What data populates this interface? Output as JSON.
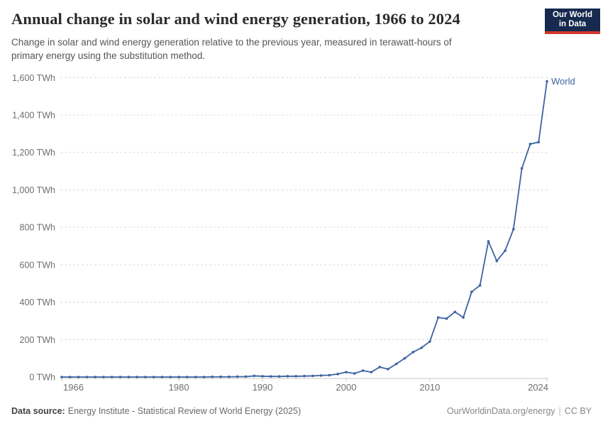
{
  "header": {
    "title": "Annual change in solar and wind energy generation, 1966 to 2024",
    "subtitle": "Change in solar and wind energy generation relative to the previous year, measured in terawatt-hours of primary energy using the substitution method."
  },
  "logo": {
    "line1": "Our World",
    "line2": "in Data"
  },
  "chart_data": {
    "type": "line",
    "title": "Annual change in solar and wind energy generation, 1966 to 2024",
    "unit": "TWh",
    "ylabel": "",
    "xlabel": "",
    "ylim": [
      0,
      1600
    ],
    "yticks": [
      0,
      200,
      400,
      600,
      800,
      1000,
      1200,
      1400,
      1600
    ],
    "ytick_suffix": " TWh",
    "xticks": [
      1966,
      1980,
      1990,
      2000,
      2010,
      2024
    ],
    "grid": true,
    "legend_position": "end-of-line-label",
    "line_color": "#3d63a2",
    "x": [
      1966,
      1967,
      1968,
      1969,
      1970,
      1971,
      1972,
      1973,
      1974,
      1975,
      1976,
      1977,
      1978,
      1979,
      1980,
      1981,
      1982,
      1983,
      1984,
      1985,
      1986,
      1987,
      1988,
      1989,
      1990,
      1991,
      1992,
      1993,
      1994,
      1995,
      1996,
      1997,
      1998,
      1999,
      2000,
      2001,
      2002,
      2003,
      2004,
      2005,
      2006,
      2007,
      2008,
      2009,
      2010,
      2011,
      2012,
      2013,
      2014,
      2015,
      2016,
      2017,
      2018,
      2019,
      2020,
      2021,
      2022,
      2023,
      2024
    ],
    "series": [
      {
        "name": "World",
        "values": [
          0,
          0,
          0,
          0,
          0,
          0,
          0,
          0,
          0,
          0,
          0,
          0,
          0,
          0,
          0,
          0,
          0,
          0,
          1,
          1,
          1,
          2,
          2,
          6,
          4,
          3,
          3,
          4,
          4,
          5,
          6,
          8,
          10,
          16,
          26,
          19,
          34,
          26,
          53,
          42,
          70,
          100,
          133,
          156,
          190,
          318,
          312,
          348,
          318,
          455,
          490,
          725,
          620,
          675,
          790,
          1115,
          1245,
          1255,
          1580
        ]
      }
    ]
  },
  "footer": {
    "source_label": "Data source:",
    "source_text": "Energy Institute - Statistical Review of World Energy (2025)",
    "right_url": "OurWorldinData.org/energy",
    "divider": "|",
    "license": "CC BY"
  }
}
